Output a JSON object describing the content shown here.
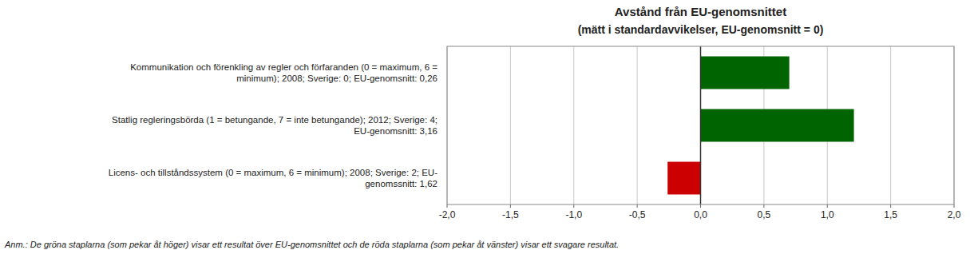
{
  "chart_data": {
    "type": "bar",
    "orientation": "horizontal",
    "title": "Avstånd från EU-genomsnittet",
    "subtitle": "(mätt i standardavvikelser, EU-genomsnitt = 0)",
    "categories": [
      "Kommunikation och förenkling av regler och förfaranden (0 = maximum, 6 =\nminimum); 2008; Sverige: 0; EU-genomsnitt: 0,26",
      "Statlig regleringsbörda (1 = betungande, 7 = inte betungande); 2012; Sverige: 4;\nEU-genomsnitt: 3,16",
      "Licens- och tillståndssystem (0 = maximum, 6 = minimum); 2008; Sverige: 2; EU-\ngenomssnitt: 1,62"
    ],
    "values": [
      0.7,
      1.21,
      -0.26
    ],
    "colors": [
      "#006400",
      "#006400",
      "#cc0000"
    ],
    "xlim": [
      -2.0,
      2.0
    ],
    "xticks": [
      {
        "value": -2.0,
        "label": "-2,0"
      },
      {
        "value": -1.5,
        "label": "-1,5"
      },
      {
        "value": -1.0,
        "label": "-1,0"
      },
      {
        "value": -0.5,
        "label": "-0,5"
      },
      {
        "value": 0.0,
        "label": "0,0"
      },
      {
        "value": 0.5,
        "label": "0,5"
      },
      {
        "value": 1.0,
        "label": "1,0"
      },
      {
        "value": 1.5,
        "label": "1,5"
      },
      {
        "value": 2.0,
        "label": "2,0"
      }
    ],
    "grid": true,
    "annotation": "Anm.: De gröna staplarna (som pekar åt höger) visar ett resultat över EU-genomsnittet och de röda staplarna (som pekar åt vänster) visar ett svagare resultat."
  }
}
